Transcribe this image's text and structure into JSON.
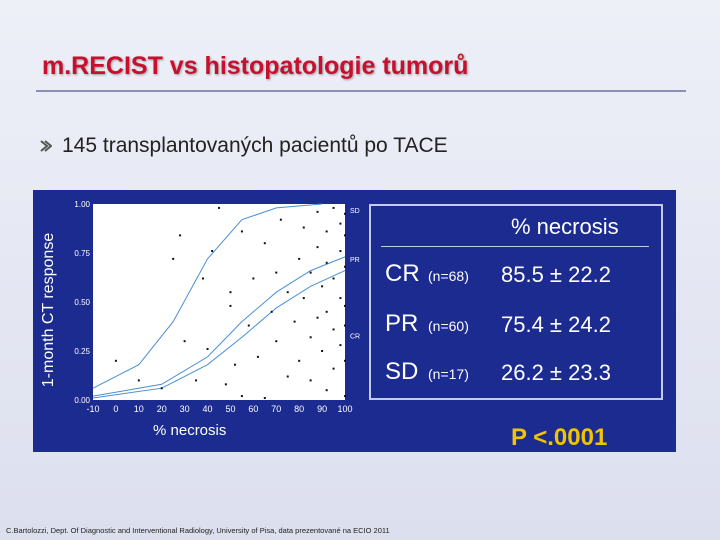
{
  "slide": {
    "title": "m.RECIST vs histopatologie tumorů",
    "bullet_icon": "arrow-bullet-icon",
    "bullet_text": "145 transplantovaných pacientů po TACE",
    "footer": "C.Bartolozzi, Dept. Of Diagnostic and Interventional Radiology, University of Pisa, data prezentované na ECIO 2011",
    "colors": {
      "title": "#c8102e",
      "panel_bg": "#1c2b8f",
      "pvalue": "#f0c400",
      "curve": "#4a8fd6"
    }
  },
  "chart_data": [
    {
      "type": "scatter",
      "ylabel": "1-month CT response",
      "xlabel": "% necrosis",
      "x_ticks": [
        "-10",
        "0",
        "10",
        "20",
        "30",
        "40",
        "50",
        "60",
        "70",
        "80",
        "90",
        "100"
      ],
      "y_ticks": [
        "0.00",
        "0.25",
        "0.50",
        "0.75",
        "1.00"
      ],
      "xlim": [
        -10,
        100
      ],
      "ylim": [
        0,
        1
      ],
      "curve_labels": [
        "SD",
        "PR",
        "CR"
      ],
      "series": [
        {
          "name": "SD",
          "values": [
            [
              -10,
              0.06
            ],
            [
              10,
              0.18
            ],
            [
              25,
              0.4
            ],
            [
              40,
              0.72
            ],
            [
              55,
              0.92
            ],
            [
              70,
              0.98
            ],
            [
              90,
              1.0
            ]
          ]
        },
        {
          "name": "PR",
          "values": [
            [
              -10,
              0.02
            ],
            [
              20,
              0.08
            ],
            [
              40,
              0.22
            ],
            [
              55,
              0.4
            ],
            [
              70,
              0.55
            ],
            [
              85,
              0.66
            ],
            [
              100,
              0.73
            ]
          ]
        },
        {
          "name": "CR",
          "values": [
            [
              -10,
              0.01
            ],
            [
              20,
              0.06
            ],
            [
              40,
              0.18
            ],
            [
              55,
              0.32
            ],
            [
              70,
              0.47
            ],
            [
              85,
              0.58
            ],
            [
              100,
              0.66
            ]
          ]
        }
      ],
      "points": [
        [
          0,
          0.2
        ],
        [
          10,
          0.1
        ],
        [
          20,
          0.06
        ],
        [
          25,
          0.72
        ],
        [
          28,
          0.84
        ],
        [
          30,
          0.3
        ],
        [
          35,
          0.1
        ],
        [
          38,
          0.62
        ],
        [
          40,
          0.26
        ],
        [
          42,
          0.76
        ],
        [
          45,
          0.98
        ],
        [
          48,
          0.08
        ],
        [
          50,
          0.48
        ],
        [
          50,
          0.55
        ],
        [
          52,
          0.18
        ],
        [
          55,
          0.86
        ],
        [
          58,
          0.38
        ],
        [
          60,
          0.62
        ],
        [
          62,
          0.22
        ],
        [
          65,
          0.8
        ],
        [
          68,
          0.45
        ],
        [
          70,
          0.65
        ],
        [
          70,
          0.3
        ],
        [
          72,
          0.92
        ],
        [
          75,
          0.12
        ],
        [
          75,
          0.55
        ],
        [
          78,
          0.4
        ],
        [
          80,
          0.72
        ],
        [
          80,
          0.2
        ],
        [
          82,
          0.88
        ],
        [
          82,
          0.52
        ],
        [
          85,
          0.65
        ],
        [
          85,
          0.32
        ],
        [
          85,
          0.1
        ],
        [
          88,
          0.96
        ],
        [
          88,
          0.78
        ],
        [
          88,
          0.42
        ],
        [
          90,
          0.58
        ],
        [
          90,
          0.25
        ],
        [
          92,
          0.86
        ],
        [
          92,
          0.7
        ],
        [
          92,
          0.45
        ],
        [
          92,
          0.05
        ],
        [
          95,
          0.98
        ],
        [
          95,
          0.62
        ],
        [
          95,
          0.36
        ],
        [
          95,
          0.16
        ],
        [
          98,
          0.9
        ],
        [
          98,
          0.76
        ],
        [
          98,
          0.52
        ],
        [
          98,
          0.28
        ],
        [
          100,
          0.95
        ],
        [
          100,
          0.84
        ],
        [
          100,
          0.68
        ],
        [
          100,
          0.48
        ],
        [
          100,
          0.38
        ],
        [
          100,
          0.2
        ],
        [
          100,
          0.02
        ],
        [
          65,
          0.01
        ],
        [
          55,
          0.02
        ]
      ]
    },
    {
      "type": "table",
      "header": "% necrosis",
      "rows": [
        {
          "label": "CR",
          "n": "(n=68)",
          "value": "85.5 ± 22.2"
        },
        {
          "label": "PR",
          "n": "(n=60)",
          "value": "75.4 ± 24.2"
        },
        {
          "label": "SD",
          "n": "(n=17)",
          "value": "26.2 ± 23.3"
        }
      ],
      "p_value": "P <.0001"
    }
  ]
}
